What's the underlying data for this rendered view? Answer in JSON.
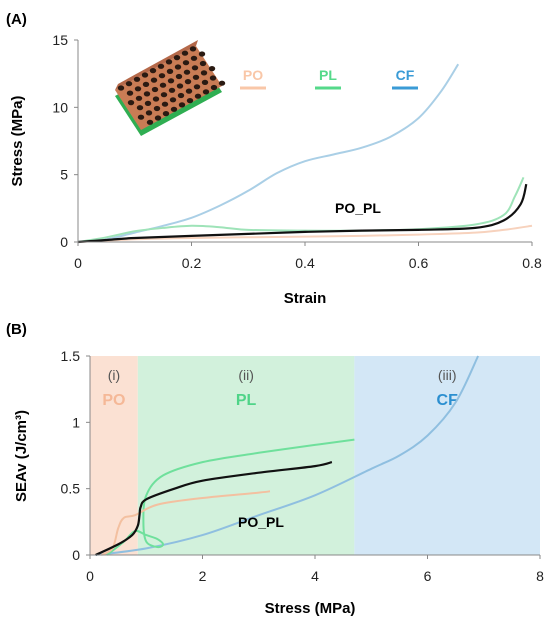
{
  "chart_data": [
    {
      "type": "line",
      "panel_label": "(A)",
      "xlabel": "Strain",
      "ylabel": "Stress (MPa)",
      "xlim": [
        0,
        0.8
      ],
      "ylim": [
        0,
        15
      ],
      "xticks": [
        "0",
        "0.2",
        "0.4",
        "0.6",
        "0.8"
      ],
      "yticks": [
        "0",
        "5",
        "10",
        "15"
      ],
      "legend": [
        {
          "label": "PO",
          "color": "#f9c7a8"
        },
        {
          "label": "PL",
          "color": "#55d98a"
        },
        {
          "label": "CF",
          "color": "#3a9bd6"
        }
      ],
      "annotation": "PO_PL",
      "series": [
        {
          "name": "CF",
          "color": "#aacfe6",
          "points": [
            [
              0.0,
              0
            ],
            [
              0.05,
              0.2
            ],
            [
              0.1,
              0.7
            ],
            [
              0.15,
              1.2
            ],
            [
              0.2,
              1.8
            ],
            [
              0.25,
              2.7
            ],
            [
              0.3,
              3.8
            ],
            [
              0.35,
              5.1
            ],
            [
              0.4,
              6.0
            ],
            [
              0.45,
              6.5
            ],
            [
              0.5,
              7.0
            ],
            [
              0.55,
              7.8
            ],
            [
              0.6,
              9.2
            ],
            [
              0.64,
              11.2
            ],
            [
              0.67,
              13.2
            ]
          ]
        },
        {
          "name": "PL",
          "color": "#9ee3b8",
          "points": [
            [
              0.0,
              0
            ],
            [
              0.05,
              0.35
            ],
            [
              0.1,
              0.8
            ],
            [
              0.15,
              1.05
            ],
            [
              0.2,
              1.2
            ],
            [
              0.25,
              1.1
            ],
            [
              0.3,
              0.9
            ],
            [
              0.4,
              0.85
            ],
            [
              0.5,
              0.85
            ],
            [
              0.6,
              0.95
            ],
            [
              0.7,
              1.3
            ],
            [
              0.75,
              2.0
            ],
            [
              0.77,
              3.4
            ],
            [
              0.785,
              4.8
            ]
          ]
        },
        {
          "name": "PO",
          "color": "#f7d2bd",
          "points": [
            [
              0.0,
              0
            ],
            [
              0.1,
              0.2
            ],
            [
              0.2,
              0.3
            ],
            [
              0.3,
              0.35
            ],
            [
              0.4,
              0.4
            ],
            [
              0.5,
              0.45
            ],
            [
              0.6,
              0.55
            ],
            [
              0.7,
              0.7
            ],
            [
              0.75,
              0.9
            ],
            [
              0.8,
              1.2
            ]
          ]
        },
        {
          "name": "PO_PL",
          "color": "#111111",
          "points": [
            [
              0.0,
              0
            ],
            [
              0.05,
              0.15
            ],
            [
              0.1,
              0.3
            ],
            [
              0.2,
              0.45
            ],
            [
              0.3,
              0.6
            ],
            [
              0.4,
              0.75
            ],
            [
              0.5,
              0.85
            ],
            [
              0.6,
              0.9
            ],
            [
              0.7,
              1.05
            ],
            [
              0.75,
              1.6
            ],
            [
              0.78,
              2.8
            ],
            [
              0.79,
              4.3
            ]
          ]
        }
      ]
    },
    {
      "type": "line",
      "panel_label": "(B)",
      "xlabel": "Stress (MPa)",
      "ylabel": "SEAv (J/cm³)",
      "xlim": [
        0,
        8
      ],
      "ylim": [
        0,
        1.5
      ],
      "xticks": [
        "0",
        "2",
        "4",
        "6",
        "8"
      ],
      "yticks": [
        "0",
        "0.5",
        "1",
        "1.5"
      ],
      "regions": [
        {
          "roman": "(i)",
          "label": "PO",
          "x": [
            0,
            0.85
          ],
          "color": "#fbe1d3",
          "label_color": "#f5b897"
        },
        {
          "roman": "(ii)",
          "label": "PL",
          "x": [
            0.85,
            4.7
          ],
          "color": "#d2f1dc",
          "label_color": "#4fd488"
        },
        {
          "roman": "(iii)",
          "label": "CF",
          "x": [
            4.7,
            8
          ],
          "color": "#d3e7f6",
          "label_color": "#2b8fd0"
        }
      ],
      "annotation": "PO_PL",
      "series": [
        {
          "name": "CF",
          "color": "#8fbfe0",
          "points": [
            [
              0.1,
              0
            ],
            [
              1,
              0.05
            ],
            [
              2,
              0.15
            ],
            [
              3,
              0.3
            ],
            [
              4,
              0.45
            ],
            [
              5,
              0.65
            ],
            [
              5.5,
              0.75
            ],
            [
              6,
              0.9
            ],
            [
              6.5,
              1.15
            ],
            [
              6.9,
              1.5
            ]
          ]
        },
        {
          "name": "PL",
          "color": "#6fe09c",
          "points": [
            [
              0.3,
              0
            ],
            [
              0.6,
              0.1
            ],
            [
              0.8,
              0.18
            ],
            [
              1.0,
              0.15
            ],
            [
              1.2,
              0.12
            ],
            [
              1.3,
              0.08
            ],
            [
              1.2,
              0.06
            ],
            [
              1.0,
              0.1
            ],
            [
              0.95,
              0.25
            ],
            [
              1.0,
              0.45
            ],
            [
              1.3,
              0.6
            ],
            [
              2,
              0.7
            ],
            [
              3,
              0.77
            ],
            [
              4,
              0.83
            ],
            [
              4.7,
              0.87
            ]
          ]
        },
        {
          "name": "PO",
          "color": "#f3c0a0",
          "points": [
            [
              0.2,
              0
            ],
            [
              0.4,
              0.05
            ],
            [
              0.5,
              0.2
            ],
            [
              0.6,
              0.28
            ],
            [
              0.8,
              0.3
            ],
            [
              1.2,
              0.38
            ],
            [
              2,
              0.43
            ],
            [
              3,
              0.47
            ],
            [
              3.2,
              0.48
            ]
          ]
        },
        {
          "name": "PO_PL",
          "color": "#111111",
          "points": [
            [
              0.1,
              0
            ],
            [
              0.5,
              0.08
            ],
            [
              0.75,
              0.15
            ],
            [
              0.85,
              0.22
            ],
            [
              0.88,
              0.3
            ],
            [
              0.9,
              0.36
            ],
            [
              1.0,
              0.42
            ],
            [
              1.5,
              0.5
            ],
            [
              2,
              0.56
            ],
            [
              3,
              0.62
            ],
            [
              4,
              0.67
            ],
            [
              4.3,
              0.7
            ]
          ]
        }
      ]
    }
  ]
}
